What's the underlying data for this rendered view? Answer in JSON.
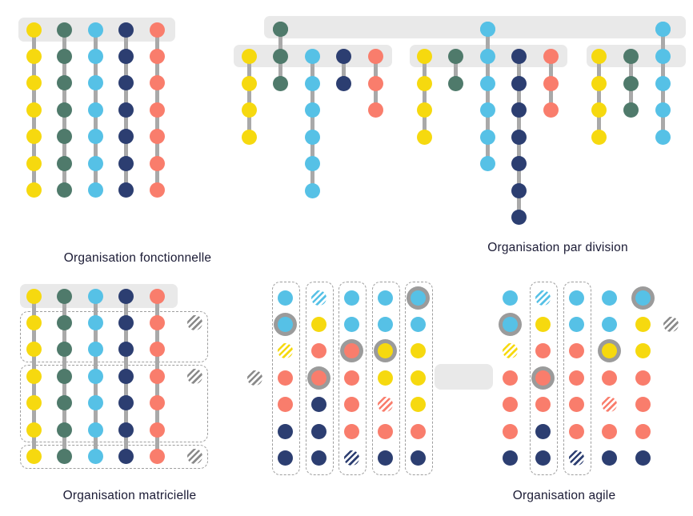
{
  "labels": {
    "fonctionnelle": "Organisation fonctionnelle",
    "par_division": "Organisation par division",
    "matricielle": "Organisation matricielle",
    "agile": "Organisation agile"
  },
  "palette": {
    "yellow": "#F6D90F",
    "green": "#4F7A6B",
    "blue": "#56C1E6",
    "navy": "#2C3E71",
    "red": "#F97D6C",
    "band": "#E9E9E9",
    "connector": "#A9A9A9",
    "ring": "#9B9B9B",
    "hatch_gray": "#8A8A8A",
    "box_border": "#9E9E9E",
    "label_text": "#1B1B35"
  },
  "fonctionnelle": {
    "columns": [
      "yellow",
      "green",
      "blue",
      "navy",
      "red"
    ],
    "rows_per_column": 7,
    "header_rows": 1
  },
  "par_division": {
    "top_executives": [
      "green",
      "blue",
      "blue"
    ],
    "divisions": [
      {
        "head": "green",
        "columns": [
          {
            "color": "yellow",
            "reports": 3
          },
          {
            "color": "green",
            "reports": 1
          },
          {
            "color": "blue",
            "reports": 5
          },
          {
            "color": "navy",
            "reports": 1
          },
          {
            "color": "red",
            "reports": 2
          }
        ]
      },
      {
        "head": "blue",
        "columns": [
          {
            "color": "yellow",
            "reports": 3
          },
          {
            "color": "green",
            "reports": 1
          },
          {
            "color": "blue",
            "reports": 4
          },
          {
            "color": "navy",
            "reports": 6
          },
          {
            "color": "red",
            "reports": 2
          }
        ]
      },
      {
        "head": "blue",
        "columns": [
          {
            "color": "yellow",
            "reports": 3
          },
          {
            "color": "green",
            "reports": 2
          },
          {
            "color": "blue",
            "reports": 3
          }
        ]
      }
    ]
  },
  "matricielle": {
    "columns": [
      "yellow",
      "green",
      "blue",
      "navy",
      "red"
    ],
    "project_groups": [
      {
        "rows": 2,
        "marker": "hatch_gray"
      },
      {
        "rows": 3,
        "marker": "hatch_gray"
      },
      {
        "rows": 1,
        "marker": "hatch_gray"
      }
    ]
  },
  "agile": {
    "left_squads": {
      "boxed_columns": [
        1,
        1,
        1,
        1,
        1
      ],
      "outside_marker": "hatch_gray",
      "columns": [
        [
          "blue",
          "blue:ring",
          "yellow:hatch",
          "red",
          "red",
          "navy",
          "navy"
        ],
        [
          "blue:hatch",
          "yellow",
          "red",
          "red:ring",
          "navy",
          "navy",
          "navy"
        ],
        [
          "blue",
          "blue",
          "red:ring",
          "red",
          "red",
          "red",
          "navy:hatch"
        ],
        [
          "blue",
          "blue",
          "yellow:ring",
          "yellow",
          "red:hatch",
          "red",
          "navy"
        ],
        [
          "blue:ring",
          "blue",
          "yellow",
          "yellow",
          "yellow",
          "red",
          "navy"
        ]
      ]
    },
    "right_grid": {
      "boxed_columns": [
        0,
        1,
        1,
        0,
        0
      ],
      "outside_marker": "hatch_gray",
      "columns": [
        [
          "blue",
          "blue:ring",
          "yellow:hatch",
          "red",
          "red",
          "red",
          "navy"
        ],
        [
          "blue:hatch",
          "yellow",
          "red",
          "red:ring",
          "red",
          "navy",
          "navy"
        ],
        [
          "blue",
          "blue",
          "red",
          "red",
          "red",
          "red",
          "navy:hatch"
        ],
        [
          "blue",
          "blue",
          "yellow:ring",
          "red",
          "red:hatch",
          "red",
          "navy"
        ],
        [
          "blue:ring",
          "yellow",
          "yellow",
          "red",
          "red",
          "red",
          "navy"
        ]
      ]
    }
  }
}
